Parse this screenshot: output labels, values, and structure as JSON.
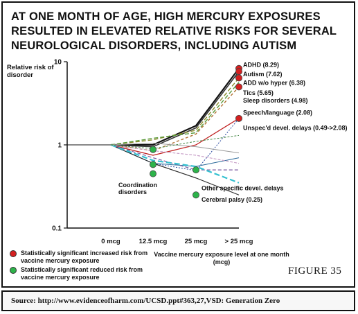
{
  "title": "AT ONE MONTH OF AGE, HIGH MERCURY EXPOSURES RESULTED IN ELEVATED RELATIVE RISKS FOR SEVERAL NEUROLOGICAL DISORDERS, INCLUDING AUTISM",
  "figure_label": "FIGURE 35",
  "source": "Source: http://www.evidenceofharm.com/UCSD.ppt#363,27,VSD: Generation Zero",
  "legend": [
    {
      "label": "Statistically significant increased risk from vaccine mercury exposure",
      "color": "#d42020"
    },
    {
      "label": "Statistically significant reduced risk from vaccine mercury exposure",
      "color": "#2db34a"
    }
  ],
  "chart_data": {
    "type": "line",
    "yscale": "log",
    "ylim": [
      0.1,
      10
    ],
    "ylabel": "Relative risk of disorder",
    "xlabel": "Vaccine mercury exposure level at one month (mcg)",
    "yticks": [
      {
        "value": 0.1,
        "label": "0.1"
      },
      {
        "value": 1,
        "label": "1"
      },
      {
        "value": 10,
        "label": "10"
      }
    ],
    "categories": [
      "0 mcg",
      "12.5 mcg",
      "25 mcg",
      "> 25 mcg"
    ],
    "series": [
      {
        "name": "ADHD (8.29)",
        "values": [
          1,
          1.0,
          1.7,
          8.29
        ],
        "color": "#111111",
        "width": 2.2,
        "dash": ""
      },
      {
        "name": "Autism (7.62)",
        "values": [
          1,
          0.95,
          1.6,
          7.62
        ],
        "color": "#333333",
        "width": 1.6,
        "dash": ""
      },
      {
        "name": "ADD w/o hyper (6.38)",
        "values": [
          1,
          1.15,
          1.5,
          6.38
        ],
        "color": "#8a8a2a",
        "width": 1.4,
        "dash": "6 3"
      },
      {
        "name": "Tics (5.65)",
        "values": [
          1,
          1.2,
          1.4,
          5.65
        ],
        "color": "#5a9a3a",
        "width": 1.4,
        "dash": "6 3"
      },
      {
        "name": "Sleep disorders (4.98)",
        "values": [
          1,
          0.85,
          1.35,
          4.98
        ],
        "color": "#b07030",
        "width": 1.4,
        "dash": "4 3"
      },
      {
        "name": "Speech/language (2.08)",
        "values": [
          1,
          0.75,
          1.0,
          2.08
        ],
        "color": "#c02020",
        "width": 1.3,
        "dash": ""
      },
      {
        "name": "Unspec'd devel. delays (0.49->2.08)",
        "values": [
          1,
          0.6,
          0.49,
          2.08
        ],
        "color": "#2a4aa0",
        "width": 1.0,
        "dash": "2 2"
      },
      {
        "name": "Coordination disorders",
        "values": [
          1,
          0.6,
          0.55,
          0.7
        ],
        "color": "#2a6a9a",
        "width": 1.0,
        "dash": ""
      },
      {
        "name": "Other specific devel. delays",
        "values": [
          1,
          0.7,
          0.5,
          0.5
        ],
        "color": "#7a5aa0",
        "width": 1.2,
        "dash": "5 3"
      },
      {
        "name": "Cerebral palsy (0.25)",
        "values": [
          1,
          0.6,
          0.4,
          0.25
        ],
        "color": "#2a2a2a",
        "width": 1.2,
        "dash": ""
      },
      {
        "name": "",
        "values": [
          1,
          0.65,
          0.55,
          0.35
        ],
        "color": "#33c0d0",
        "width": 2.2,
        "dash": "8 4"
      },
      {
        "name": "",
        "values": [
          1,
          0.85,
          0.75,
          0.6
        ],
        "color": "#c8a0c8",
        "width": 1.2,
        "dash": "4 2"
      },
      {
        "name": "",
        "values": [
          1,
          1.05,
          0.95,
          0.8
        ],
        "color": "#9a9a9a",
        "width": 1.0,
        "dash": ""
      },
      {
        "name": "",
        "values": [
          1,
          0.9,
          1.1,
          1.3
        ],
        "color": "#4a8a4a",
        "width": 1.0,
        "dash": "3 2"
      }
    ],
    "markers": [
      {
        "x": 3,
        "y": 8.29,
        "type": "increased"
      },
      {
        "x": 3,
        "y": 7.62,
        "type": "increased"
      },
      {
        "x": 3,
        "y": 6.38,
        "type": "increased"
      },
      {
        "x": 3,
        "y": 4.98,
        "type": "increased"
      },
      {
        "x": 3,
        "y": 2.08,
        "type": "increased"
      },
      {
        "x": 1,
        "y": 0.88,
        "type": "reduced"
      },
      {
        "x": 1,
        "y": 0.58,
        "type": "reduced"
      },
      {
        "x": 1,
        "y": 0.45,
        "type": "reduced"
      },
      {
        "x": 2,
        "y": 0.5,
        "type": "reduced"
      },
      {
        "x": 2,
        "y": 0.25,
        "type": "reduced"
      }
    ],
    "annotations": [
      {
        "text": "ADHD (8.29)",
        "x": 3,
        "y": 9.2
      },
      {
        "text": "Autism (7.62)",
        "x": 3,
        "y": 7.1
      },
      {
        "text": "ADD w/o hyper (6.38)",
        "x": 3,
        "y": 5.55
      },
      {
        "text": "Tics (5.65)",
        "x": 3,
        "y": 4.2
      },
      {
        "text": "Sleep disorders (4.98)",
        "x": 3,
        "y": 3.4
      },
      {
        "text": "Speech/language (2.08)",
        "x": 3,
        "y": 2.45
      },
      {
        "text": "Unspec'd devel. delays (0.49->2.08)",
        "x": 3,
        "y": 1.6
      },
      {
        "text": "Other specific  devel. delays",
        "x": 2,
        "y": 0.3
      },
      {
        "text": "Cerebral palsy (0.25)",
        "x": 2,
        "y": 0.22
      },
      {
        "text": "Coordination",
        "x": 1,
        "y": 0.33
      },
      {
        "text": "disorders",
        "x": 1,
        "y": 0.27
      }
    ]
  }
}
